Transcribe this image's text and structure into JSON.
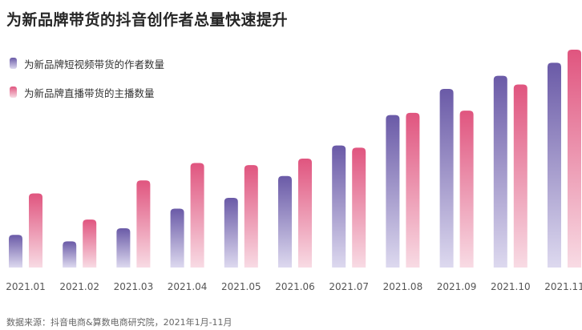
{
  "title": "为新品牌带货的抖音创作者总量快速提升",
  "source": "数据来源：抖音电商&算数电商研究院，2021年1月-11月",
  "colors": {
    "series1_top": "#6a5aa7",
    "series1_bottom": "#ddd9ef",
    "series2_top": "#e0557f",
    "series2_bottom": "#f8dbe4",
    "text": "#262626",
    "tick": "#555555"
  },
  "chart_data": {
    "type": "bar",
    "title": "为新品牌带货的抖音创作者总量快速提升",
    "xlabel": "",
    "ylabel": "",
    "ylim": [
      0,
      100
    ],
    "grid": false,
    "legend_position": "top-left",
    "categories": [
      "2021.01",
      "2021.02",
      "2021.03",
      "2021.04",
      "2021.05",
      "2021.06",
      "2021.07",
      "2021.08",
      "2021.09",
      "2021.10",
      "2021.11"
    ],
    "series": [
      {
        "name": "为新品牌短视频带货的作者数量",
        "values": [
          15,
          12,
          18,
          27,
          32,
          42,
          56,
          70,
          82,
          88,
          94
        ]
      },
      {
        "name": "为新品牌直播带货的主播数量",
        "values": [
          34,
          22,
          40,
          48,
          47,
          50,
          55,
          71,
          72,
          84,
          100
        ]
      }
    ]
  }
}
